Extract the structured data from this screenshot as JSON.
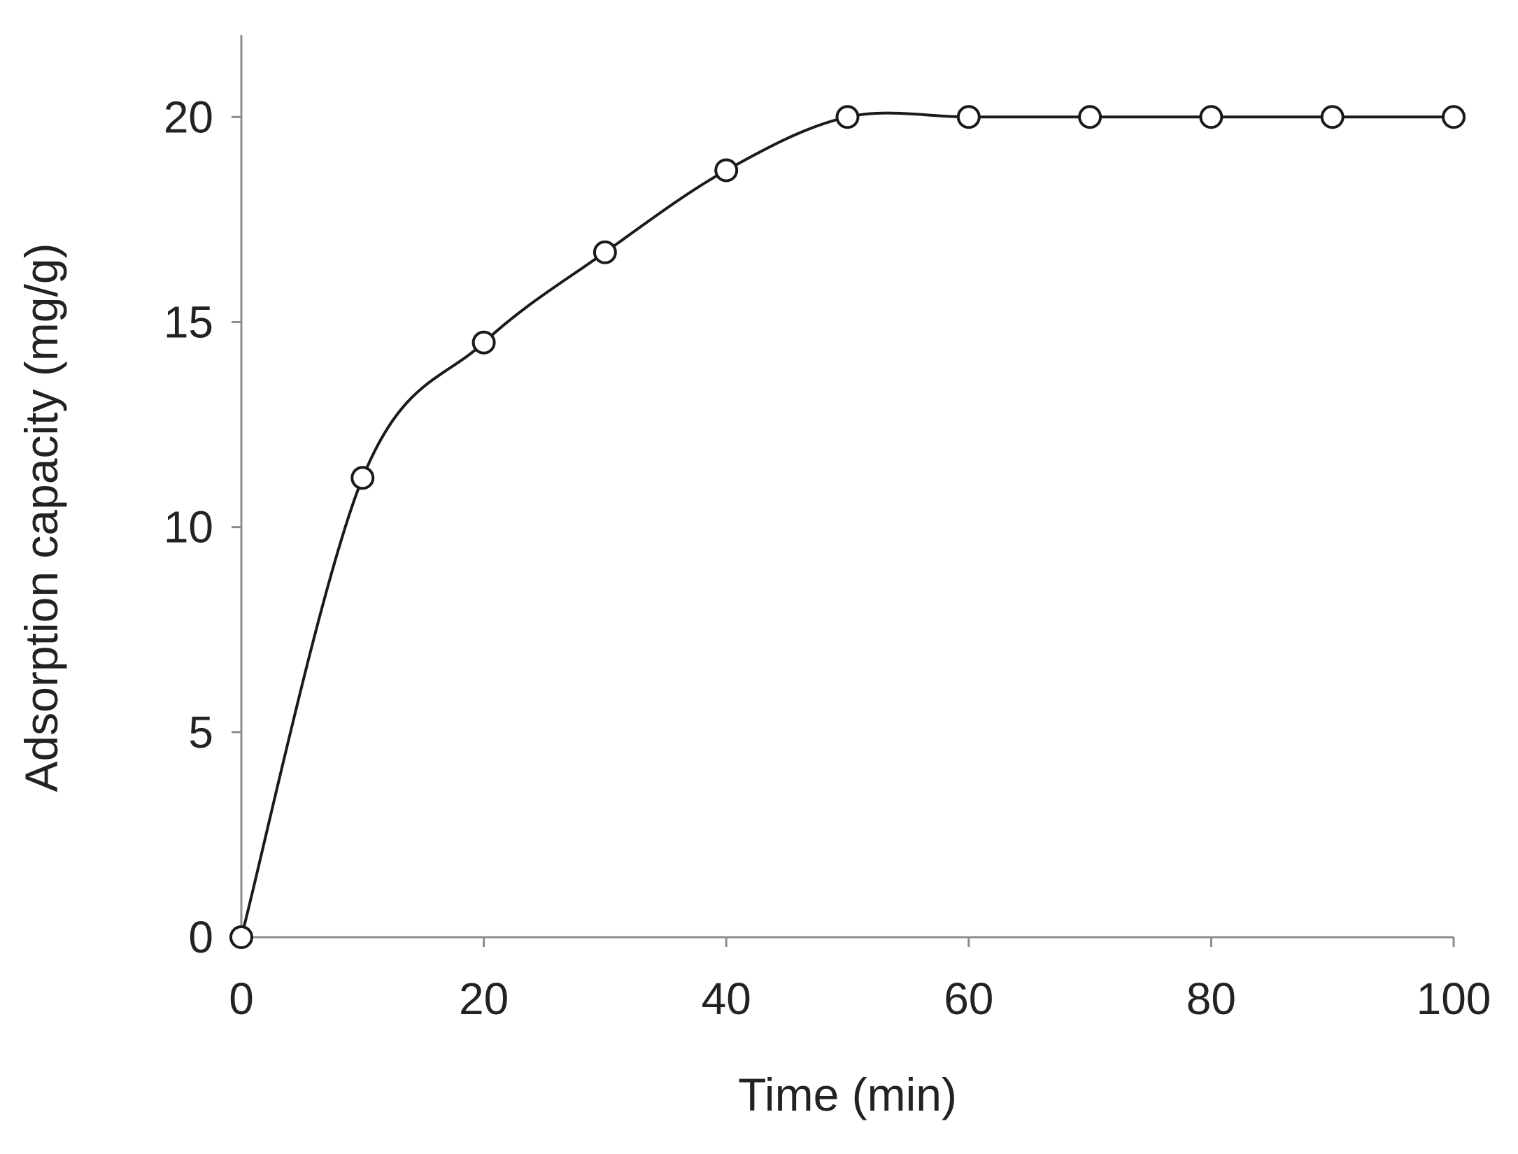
{
  "chart_data": {
    "type": "line",
    "title": "",
    "xlabel": "Time (min)",
    "ylabel": "Adsorption capacity  (mg/g)",
    "xlim": [
      0,
      100
    ],
    "ylim": [
      0,
      22
    ],
    "x_ticks": [
      0,
      20,
      40,
      60,
      80,
      100
    ],
    "y_ticks": [
      0,
      5,
      10,
      15,
      20
    ],
    "x_tick_labels": [
      "0",
      "20",
      "40",
      "60",
      "80",
      "100"
    ],
    "y_tick_labels": [
      "0",
      "5",
      "10",
      "15",
      "20"
    ],
    "grid": false,
    "legend": "none",
    "series": [
      {
        "x": [
          0,
          10,
          20,
          30,
          40,
          50,
          60,
          70,
          80,
          90,
          100
        ],
        "y": [
          0,
          11.2,
          14.5,
          16.7,
          18.7,
          20.0,
          20.0,
          20.0,
          20.0,
          20.0,
          20.0
        ],
        "marker": "open-circle",
        "smooth": true
      }
    ],
    "colors": {
      "line": "#1a1a1a",
      "axis": "#8c8c8c",
      "marker_fill": "#ffffff"
    }
  }
}
